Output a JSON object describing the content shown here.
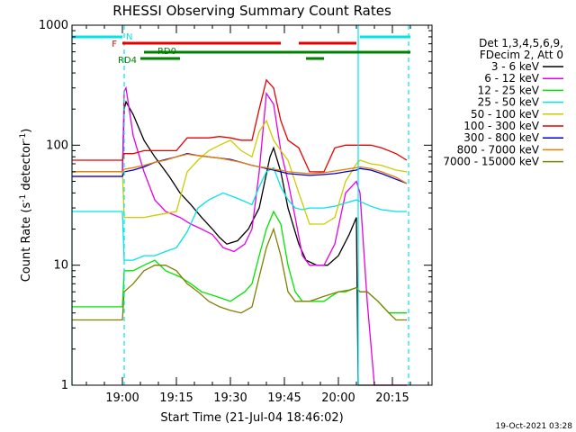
{
  "chart_data": {
    "type": "line",
    "title": "RHESSI Observing Summary Count Rates",
    "xlabel": "Start Time (21-Jul-04 18:46:02)",
    "ylabel": "Count Rate (s",
    "ylabel_sup": "-1",
    "ylabel_rest": " detector",
    "ylabel_close": ")",
    "y_scale": "log",
    "ylim": [
      1,
      1000
    ],
    "xlim_minutes": [
      0,
      100
    ],
    "x_tick_minutes": [
      14,
      29,
      44,
      59,
      74,
      89
    ],
    "x_tick_labels": [
      "19:00",
      "19:15",
      "19:30",
      "19:45",
      "20:00",
      "20:15"
    ],
    "y_tick_values": [
      1,
      10,
      100,
      1000
    ],
    "y_tick_labels": [
      "1",
      "10",
      "100",
      "1000"
    ],
    "legend_header": [
      "Det 1,3,4,5,6,9,",
      "FDecim 2, Att 0"
    ],
    "footer": "19-Oct-2021 03:28",
    "flags": [
      {
        "label": "N",
        "color": "#00e5e5",
        "segments": [
          [
            0,
            14
          ],
          [
            80,
            94
          ]
        ]
      },
      {
        "label": "F",
        "color": "#e60000",
        "segments": [
          [
            14,
            58
          ],
          [
            63,
            79
          ]
        ]
      },
      {
        "label": "RD0",
        "color": "#008000",
        "segments": [
          [
            20,
            30
          ],
          [
            30,
            94
          ]
        ]
      },
      {
        "label": "RD4",
        "color": "#008000",
        "segments": [
          [
            19,
            30
          ],
          [
            65,
            70
          ]
        ]
      }
    ],
    "vlines": [
      {
        "minute": 0,
        "style": "solid"
      },
      {
        "minute": 14.5,
        "style": "dashed"
      },
      {
        "minute": 79.5,
        "style": "solid"
      },
      {
        "minute": 93.5,
        "style": "dashed"
      }
    ],
    "series": [
      {
        "name": "3 - 6 keV",
        "color": "#000000",
        "x": [
          0,
          14,
          14.5,
          15,
          17,
          20,
          23,
          27,
          30,
          33,
          36,
          39,
          41,
          43,
          46,
          49,
          52,
          55,
          56,
          58,
          60,
          63,
          65,
          68,
          71,
          74,
          77,
          79,
          79.5,
          80,
          82,
          85,
          88,
          90,
          93
        ],
        "y": [
          60,
          60,
          200,
          230,
          180,
          110,
          80,
          55,
          40,
          32,
          25,
          20,
          17,
          15,
          16,
          20,
          30,
          80,
          95,
          60,
          30,
          15,
          11,
          10,
          10,
          12,
          18,
          25,
          1,
          1,
          1,
          1,
          1,
          1,
          1
        ]
      },
      {
        "name": "6 - 12 keV",
        "color": "#e600e6",
        "x": [
          0,
          14,
          14.5,
          15,
          17,
          20,
          23,
          26,
          30,
          33,
          36,
          39,
          42,
          45,
          48,
          50,
          52,
          54,
          56,
          58,
          60,
          62,
          64,
          66,
          70,
          73,
          76,
          79,
          80,
          82,
          84,
          86,
          88,
          90,
          93
        ],
        "y": [
          55,
          55,
          280,
          300,
          120,
          60,
          35,
          28,
          25,
          22,
          20,
          18,
          14,
          13,
          15,
          20,
          60,
          270,
          220,
          90,
          50,
          25,
          12,
          10,
          10,
          15,
          40,
          50,
          40,
          5,
          1,
          1,
          1,
          1,
          1
        ]
      },
      {
        "name": "12 - 25 keV",
        "color": "#00e600",
        "x": [
          0,
          14,
          14.5,
          17,
          20,
          23,
          26,
          30,
          33,
          36,
          40,
          44,
          48,
          50,
          52,
          54,
          56,
          58,
          60,
          62,
          64,
          66,
          70,
          72,
          74,
          76,
          79,
          80,
          82,
          85,
          88,
          90,
          93
        ],
        "y": [
          4.5,
          4.5,
          9,
          9,
          10,
          11,
          9,
          8,
          7,
          6,
          5.5,
          5,
          6,
          7,
          12,
          20,
          28,
          22,
          10,
          6,
          5,
          5,
          5,
          5.5,
          6,
          6,
          6.5,
          6,
          6,
          5,
          4,
          4,
          4
        ]
      },
      {
        "name": "25 - 50 keV",
        "color": "#00e5e5",
        "x": [
          0,
          14,
          14.5,
          17,
          20,
          23,
          26,
          29,
          32,
          35,
          38,
          42,
          46,
          50,
          52,
          54,
          56,
          58,
          60,
          62,
          64,
          66,
          70,
          73,
          76,
          79,
          80,
          83,
          86,
          90,
          93
        ],
        "y": [
          28,
          28,
          11,
          11,
          12,
          12,
          13,
          14,
          19,
          30,
          35,
          40,
          36,
          32,
          45,
          60,
          65,
          45,
          35,
          30,
          29,
          30,
          30,
          31,
          33,
          35,
          34,
          31,
          29,
          28,
          28
        ]
      },
      {
        "name": "50 - 100 keV",
        "color": "#cccc00",
        "x": [
          0,
          14,
          14.5,
          17,
          20,
          23,
          26,
          29,
          32,
          35,
          38,
          41,
          44,
          47,
          50,
          52,
          54,
          56,
          58,
          60,
          63,
          66,
          70,
          73,
          76,
          79,
          80,
          83,
          86,
          90,
          93
        ],
        "y": [
          60,
          60,
          25,
          25,
          25,
          26,
          27,
          28,
          60,
          75,
          90,
          100,
          110,
          90,
          80,
          130,
          160,
          110,
          90,
          75,
          40,
          22,
          22,
          25,
          50,
          70,
          75,
          70,
          68,
          62,
          60
        ]
      },
      {
        "name": "100 - 300 keV",
        "color": "#e60000",
        "x": [
          0,
          14,
          14.5,
          17,
          20,
          23,
          26,
          29,
          32,
          35,
          38,
          41,
          44,
          47,
          50,
          52,
          54,
          56,
          58,
          60,
          63,
          66,
          70,
          73,
          76,
          79,
          80,
          83,
          86,
          90,
          93
        ],
        "y": [
          75,
          75,
          85,
          85,
          90,
          90,
          90,
          90,
          115,
          115,
          115,
          118,
          115,
          110,
          110,
          200,
          350,
          300,
          160,
          110,
          95,
          60,
          60,
          95,
          100,
          100,
          100,
          100,
          95,
          85,
          75
        ]
      },
      {
        "name": "300 - 800 keV",
        "color": "#0000cc",
        "x": [
          0,
          14,
          14.5,
          17,
          20,
          23,
          26,
          29,
          32,
          35,
          38,
          41,
          44,
          47,
          50,
          52,
          54,
          56,
          58,
          60,
          63,
          66,
          70,
          73,
          76,
          79,
          80,
          83,
          86,
          90,
          93
        ],
        "y": [
          55,
          55,
          60,
          62,
          66,
          72,
          76,
          80,
          85,
          82,
          80,
          78,
          76,
          72,
          68,
          66,
          64,
          62,
          60,
          58,
          57,
          56,
          57,
          58,
          60,
          62,
          64,
          62,
          58,
          52,
          48
        ]
      },
      {
        "name": "800 - 7000 keV",
        "color": "#e68000",
        "x": [
          0,
          14,
          14.5,
          17,
          20,
          23,
          26,
          29,
          32,
          35,
          38,
          41,
          44,
          47,
          50,
          52,
          54,
          56,
          58,
          60,
          63,
          66,
          70,
          73,
          76,
          79,
          80,
          83,
          86,
          90,
          93
        ],
        "y": [
          60,
          60,
          63,
          65,
          68,
          72,
          75,
          80,
          84,
          82,
          80,
          78,
          75,
          72,
          68,
          66,
          65,
          63,
          62,
          60,
          59,
          58,
          59,
          61,
          63,
          65,
          66,
          64,
          60,
          54,
          48
        ]
      },
      {
        "name": "7000 - 15000 keV",
        "color": "#808000",
        "x": [
          0,
          14,
          14.5,
          17,
          20,
          23,
          26,
          29,
          32,
          35,
          38,
          41,
          44,
          47,
          50,
          52,
          54,
          56,
          58,
          60,
          62,
          64,
          66,
          70,
          74,
          77,
          79,
          80,
          82,
          85,
          88,
          90,
          93
        ],
        "y": [
          3.5,
          3.5,
          6,
          7,
          9,
          10,
          10,
          9,
          7,
          6,
          5,
          4.5,
          4.2,
          4,
          4.5,
          8,
          14,
          20,
          12,
          6,
          5,
          5,
          5,
          5.5,
          6,
          6.2,
          6.5,
          6,
          6,
          5,
          4,
          3.5,
          3.5
        ]
      }
    ]
  }
}
